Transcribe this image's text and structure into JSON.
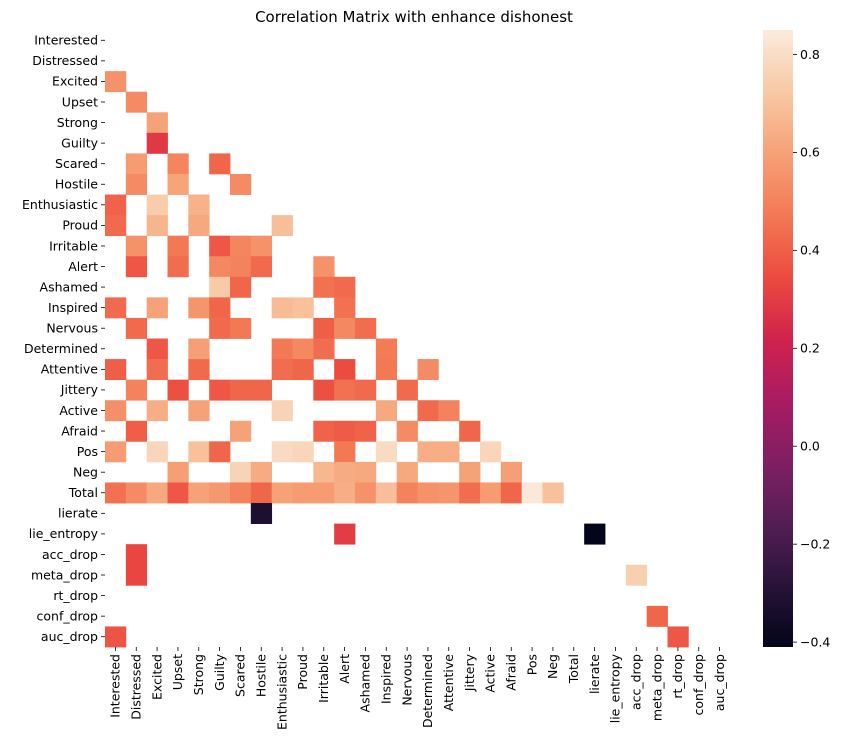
{
  "chart_data": {
    "type": "heatmap",
    "title": "Correlation Matrix with enhance dishonest",
    "xlabel": "",
    "ylabel": "",
    "labels": [
      "Interested",
      "Distressed",
      "Excited",
      "Upset",
      "Strong",
      "Guilty",
      "Scared",
      "Hostile",
      "Enthusiastic",
      "Proud",
      "Irritable",
      "Alert",
      "Ashamed",
      "Inspired",
      "Nervous",
      "Determined",
      "Attentive",
      "Jittery",
      "Active",
      "Afraid",
      "Pos",
      "Neg",
      "Total",
      "lierate",
      "lie_entropy",
      "acc_drop",
      "meta_drop",
      "rt_drop",
      "conf_drop",
      "auc_drop"
    ],
    "mask": "upper-triangle-and-diagonal; only significant lower-triangle cells shown",
    "colorbar": {
      "min": -0.41,
      "max": 0.85,
      "ticks": [
        0.8,
        0.6,
        0.4,
        0.2,
        0.0,
        -0.2,
        -0.4
      ],
      "tick_labels": [
        "0.8",
        "0.6",
        "0.4",
        "0.2",
        "0.0",
        "−0.2",
        "−0.4"
      ],
      "colormap": "rocket"
    },
    "cells": [
      {
        "row": "Excited",
        "col": "Interested",
        "value": 0.55
      },
      {
        "row": "Upset",
        "col": "Distressed",
        "value": 0.53
      },
      {
        "row": "Strong",
        "col": "Excited",
        "value": 0.6
      },
      {
        "row": "Guilty",
        "col": "Excited",
        "value": 0.29
      },
      {
        "row": "Scared",
        "col": "Distressed",
        "value": 0.58
      },
      {
        "row": "Scared",
        "col": "Upset",
        "value": 0.51
      },
      {
        "row": "Scared",
        "col": "Guilty",
        "value": 0.42
      },
      {
        "row": "Hostile",
        "col": "Distressed",
        "value": 0.53
      },
      {
        "row": "Hostile",
        "col": "Upset",
        "value": 0.61
      },
      {
        "row": "Hostile",
        "col": "Scared",
        "value": 0.53
      },
      {
        "row": "Enthusiastic",
        "col": "Interested",
        "value": 0.41
      },
      {
        "row": "Enthusiastic",
        "col": "Excited",
        "value": 0.74
      },
      {
        "row": "Enthusiastic",
        "col": "Strong",
        "value": 0.65
      },
      {
        "row": "Proud",
        "col": "Interested",
        "value": 0.43
      },
      {
        "row": "Proud",
        "col": "Excited",
        "value": 0.66
      },
      {
        "row": "Proud",
        "col": "Strong",
        "value": 0.62
      },
      {
        "row": "Proud",
        "col": "Enthusiastic",
        "value": 0.69
      },
      {
        "row": "Irritable",
        "col": "Distressed",
        "value": 0.55
      },
      {
        "row": "Irritable",
        "col": "Upset",
        "value": 0.47
      },
      {
        "row": "Irritable",
        "col": "Guilty",
        "value": 0.38
      },
      {
        "row": "Irritable",
        "col": "Scared",
        "value": 0.51
      },
      {
        "row": "Irritable",
        "col": "Hostile",
        "value": 0.55
      },
      {
        "row": "Alert",
        "col": "Distressed",
        "value": 0.38
      },
      {
        "row": "Alert",
        "col": "Upset",
        "value": 0.44
      },
      {
        "row": "Alert",
        "col": "Guilty",
        "value": 0.52
      },
      {
        "row": "Alert",
        "col": "Scared",
        "value": 0.5
      },
      {
        "row": "Alert",
        "col": "Hostile",
        "value": 0.43
      },
      {
        "row": "Alert",
        "col": "Irritable",
        "value": 0.55
      },
      {
        "row": "Ashamed",
        "col": "Guilty",
        "value": 0.73
      },
      {
        "row": "Ashamed",
        "col": "Scared",
        "value": 0.42
      },
      {
        "row": "Ashamed",
        "col": "Irritable",
        "value": 0.45
      },
      {
        "row": "Ashamed",
        "col": "Alert",
        "value": 0.43
      },
      {
        "row": "Inspired",
        "col": "Interested",
        "value": 0.43
      },
      {
        "row": "Inspired",
        "col": "Excited",
        "value": 0.6
      },
      {
        "row": "Inspired",
        "col": "Strong",
        "value": 0.56
      },
      {
        "row": "Inspired",
        "col": "Guilty",
        "value": 0.42
      },
      {
        "row": "Inspired",
        "col": "Enthusiastic",
        "value": 0.68
      },
      {
        "row": "Inspired",
        "col": "Proud",
        "value": 0.7
      },
      {
        "row": "Inspired",
        "col": "Alert",
        "value": 0.45
      },
      {
        "row": "Nervous",
        "col": "Distressed",
        "value": 0.43
      },
      {
        "row": "Nervous",
        "col": "Guilty",
        "value": 0.43
      },
      {
        "row": "Nervous",
        "col": "Scared",
        "value": 0.47
      },
      {
        "row": "Nervous",
        "col": "Irritable",
        "value": 0.4
      },
      {
        "row": "Nervous",
        "col": "Alert",
        "value": 0.52
      },
      {
        "row": "Nervous",
        "col": "Ashamed",
        "value": 0.44
      },
      {
        "row": "Determined",
        "col": "Excited",
        "value": 0.38
      },
      {
        "row": "Determined",
        "col": "Strong",
        "value": 0.59
      },
      {
        "row": "Determined",
        "col": "Enthusiastic",
        "value": 0.47
      },
      {
        "row": "Determined",
        "col": "Proud",
        "value": 0.52
      },
      {
        "row": "Determined",
        "col": "Irritable",
        "value": 0.44
      },
      {
        "row": "Determined",
        "col": "Inspired",
        "value": 0.48
      },
      {
        "row": "Attentive",
        "col": "Interested",
        "value": 0.4
      },
      {
        "row": "Attentive",
        "col": "Excited",
        "value": 0.44
      },
      {
        "row": "Attentive",
        "col": "Strong",
        "value": 0.43
      },
      {
        "row": "Attentive",
        "col": "Enthusiastic",
        "value": 0.44
      },
      {
        "row": "Attentive",
        "col": "Proud",
        "value": 0.42
      },
      {
        "row": "Attentive",
        "col": "Alert",
        "value": 0.35
      },
      {
        "row": "Attentive",
        "col": "Inspired",
        "value": 0.47
      },
      {
        "row": "Attentive",
        "col": "Determined",
        "value": 0.53
      },
      {
        "row": "Jittery",
        "col": "Distressed",
        "value": 0.5
      },
      {
        "row": "Jittery",
        "col": "Upset",
        "value": 0.36
      },
      {
        "row": "Jittery",
        "col": "Guilty",
        "value": 0.38
      },
      {
        "row": "Jittery",
        "col": "Scared",
        "value": 0.42
      },
      {
        "row": "Jittery",
        "col": "Hostile",
        "value": 0.42
      },
      {
        "row": "Jittery",
        "col": "Irritable",
        "value": 0.36
      },
      {
        "row": "Jittery",
        "col": "Alert",
        "value": 0.45
      },
      {
        "row": "Jittery",
        "col": "Ashamed",
        "value": 0.43
      },
      {
        "row": "Jittery",
        "col": "Nervous",
        "value": 0.43
      },
      {
        "row": "Active",
        "col": "Interested",
        "value": 0.54
      },
      {
        "row": "Active",
        "col": "Excited",
        "value": 0.64
      },
      {
        "row": "Active",
        "col": "Strong",
        "value": 0.6
      },
      {
        "row": "Active",
        "col": "Enthusiastic",
        "value": 0.76
      },
      {
        "row": "Active",
        "col": "Inspired",
        "value": 0.62
      },
      {
        "row": "Active",
        "col": "Determined",
        "value": 0.43
      },
      {
        "row": "Active",
        "col": "Attentive",
        "value": 0.5
      },
      {
        "row": "Afraid",
        "col": "Distressed",
        "value": 0.4
      },
      {
        "row": "Afraid",
        "col": "Scared",
        "value": 0.6
      },
      {
        "row": "Afraid",
        "col": "Irritable",
        "value": 0.41
      },
      {
        "row": "Afraid",
        "col": "Alert",
        "value": 0.39
      },
      {
        "row": "Afraid",
        "col": "Ashamed",
        "value": 0.41
      },
      {
        "row": "Afraid",
        "col": "Nervous",
        "value": 0.53
      },
      {
        "row": "Afraid",
        "col": "Jittery",
        "value": 0.42
      },
      {
        "row": "Pos",
        "col": "Interested",
        "value": 0.58
      },
      {
        "row": "Pos",
        "col": "Excited",
        "value": 0.77
      },
      {
        "row": "Pos",
        "col": "Strong",
        "value": 0.7
      },
      {
        "row": "Pos",
        "col": "Guilty",
        "value": 0.42
      },
      {
        "row": "Pos",
        "col": "Enthusiastic",
        "value": 0.79
      },
      {
        "row": "Pos",
        "col": "Proud",
        "value": 0.77
      },
      {
        "row": "Pos",
        "col": "Alert",
        "value": 0.47
      },
      {
        "row": "Pos",
        "col": "Inspired",
        "value": 0.79
      },
      {
        "row": "Pos",
        "col": "Determined",
        "value": 0.64
      },
      {
        "row": "Pos",
        "col": "Attentive",
        "value": 0.64
      },
      {
        "row": "Pos",
        "col": "Active",
        "value": 0.77
      },
      {
        "row": "Neg",
        "col": "Upset",
        "value": 0.59
      },
      {
        "row": "Neg",
        "col": "Scared",
        "value": 0.76
      },
      {
        "row": "Neg",
        "col": "Hostile",
        "value": 0.63
      },
      {
        "row": "Neg",
        "col": "Irritable",
        "value": 0.67
      },
      {
        "row": "Neg",
        "col": "Alert",
        "value": 0.63
      },
      {
        "row": "Neg",
        "col": "Ashamed",
        "value": 0.62
      },
      {
        "row": "Neg",
        "col": "Nervous",
        "value": 0.62
      },
      {
        "row": "Neg",
        "col": "Jittery",
        "value": 0.6
      },
      {
        "row": "Neg",
        "col": "Afraid",
        "value": 0.59
      },
      {
        "row": "Total",
        "col": "Interested",
        "value": 0.45
      },
      {
        "row": "Total",
        "col": "Distressed",
        "value": 0.53
      },
      {
        "row": "Total",
        "col": "Excited",
        "value": 0.62
      },
      {
        "row": "Total",
        "col": "Upset",
        "value": 0.38
      },
      {
        "row": "Total",
        "col": "Strong",
        "value": 0.6
      },
      {
        "row": "Total",
        "col": "Guilty",
        "value": 0.57
      },
      {
        "row": "Total",
        "col": "Scared",
        "value": 0.5
      },
      {
        "row": "Total",
        "col": "Hostile",
        "value": 0.42
      },
      {
        "row": "Total",
        "col": "Enthusiastic",
        "value": 0.6
      },
      {
        "row": "Total",
        "col": "Proud",
        "value": 0.58
      },
      {
        "row": "Total",
        "col": "Irritable",
        "value": 0.58
      },
      {
        "row": "Total",
        "col": "Alert",
        "value": 0.64
      },
      {
        "row": "Total",
        "col": "Ashamed",
        "value": 0.55
      },
      {
        "row": "Total",
        "col": "Inspired",
        "value": 0.69
      },
      {
        "row": "Total",
        "col": "Nervous",
        "value": 0.5
      },
      {
        "row": "Total",
        "col": "Determined",
        "value": 0.55
      },
      {
        "row": "Total",
        "col": "Attentive",
        "value": 0.56
      },
      {
        "row": "Total",
        "col": "Jittery",
        "value": 0.44
      },
      {
        "row": "Total",
        "col": "Active",
        "value": 0.58
      },
      {
        "row": "Total",
        "col": "Afraid",
        "value": 0.42
      },
      {
        "row": "Total",
        "col": "Pos",
        "value": 0.84
      },
      {
        "row": "Total",
        "col": "Neg",
        "value": 0.7
      },
      {
        "row": "lierate",
        "col": "Hostile",
        "value": -0.32
      },
      {
        "row": "lie_entropy",
        "col": "Alert",
        "value": 0.3
      },
      {
        "row": "lie_entropy",
        "col": "lierate",
        "value": -0.41
      },
      {
        "row": "acc_drop",
        "col": "Distressed",
        "value": 0.33
      },
      {
        "row": "meta_drop",
        "col": "Distressed",
        "value": 0.33
      },
      {
        "row": "meta_drop",
        "col": "acc_drop",
        "value": 0.75
      },
      {
        "row": "conf_drop",
        "col": "meta_drop",
        "value": 0.42
      },
      {
        "row": "auc_drop",
        "col": "Interested",
        "value": 0.37
      },
      {
        "row": "auc_drop",
        "col": "rt_drop",
        "value": 0.38
      }
    ]
  }
}
